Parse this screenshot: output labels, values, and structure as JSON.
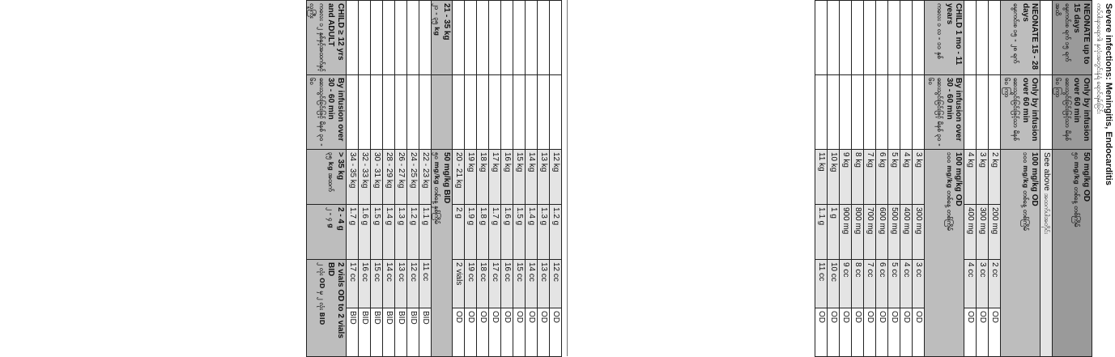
{
  "title": "Severe infections: Meningitis, Endocarditis",
  "subtitle": "ကပ်ပါးနာရောဂါ၊ နှလုံးအတွင်းနံရံ ရောင်ရမ်းခြင်း",
  "right_page": {
    "header": {
      "age": "NEONATE up to 15 days",
      "age_my": "မွေးကင်းစ ရက် ၁၅ ရက်အထိ",
      "route": "Only by infusion over 60 min",
      "route_my": "ဆေးသွင်းခြင်းဖြင့်သာ မိနစ် ၆၀ ကြာ",
      "dose": "50 mg/kg OD",
      "dose_my": "၅၀ mg/kg တစ်နေ့ တစ်ကြိမ်",
      "see_above": "See above",
      "see_above_my": "အထက်ပါအတိုင်း"
    },
    "neonate2": {
      "age": "NEONATE 15 - 28 days",
      "age_my": "မွေးကင်းစ ၁၅ - ၂၈ ရက်",
      "route": "Only by infusion over 60 min",
      "route_my": "ဆေးသွင်းခြင်းဖြင့်သာ မိနစ် ၆၀ ကြာ",
      "dose": "100 mg/kg OD",
      "dose_my": "၁၀၀ mg/kg တစ်နေ့ တစ်ကြိမ်",
      "rows": [
        {
          "kg": "2 kg",
          "mg": "200 mg",
          "cc": "2 cc",
          "freq": "OD"
        },
        {
          "kg": "3 kg",
          "mg": "300 mg",
          "cc": "3 cc",
          "freq": "OD"
        },
        {
          "kg": "4 kg",
          "mg": "400 mg",
          "cc": "4 cc",
          "freq": "OD"
        }
      ]
    },
    "child": {
      "age": "CHILD 1 mo - 11 years",
      "age_my": "ကလေး ၁ လ - ၁၁ နှစ်",
      "route": "By infusion over 30 - 60 min",
      "route_my": "ဆေးသွင်းခြင်းဖြင့် မိနစ် ၃၀ - ၆၀",
      "dose": "100 mg/kg OD",
      "dose_my": "၁၀၀ mg/kg တစ်နေ့ တစ်ကြိမ်",
      "rows": [
        {
          "kg": "3 kg",
          "mg": "300 mg",
          "cc": "3 cc",
          "freq": "OD"
        },
        {
          "kg": "4 kg",
          "mg": "400 mg",
          "cc": "4 cc",
          "freq": "OD"
        },
        {
          "kg": "5 kg",
          "mg": "500 mg",
          "cc": "5 cc",
          "freq": "OD"
        },
        {
          "kg": "6 kg",
          "mg": "600 mg",
          "cc": "6 cc",
          "freq": "OD"
        },
        {
          "kg": "7 kg",
          "mg": "700 mg",
          "cc": "7 cc",
          "freq": "OD"
        },
        {
          "kg": "8 kg",
          "mg": "800 mg",
          "cc": "8 cc",
          "freq": "OD"
        },
        {
          "kg": "9 kg",
          "mg": "900 mg",
          "cc": "9 cc",
          "freq": "OD"
        },
        {
          "kg": "10 kg",
          "mg": "1 g",
          "cc": "10 cc",
          "freq": "OD"
        },
        {
          "kg": "11 kg",
          "mg": "1.1 g",
          "cc": "11 cc",
          "freq": "OD"
        }
      ]
    }
  },
  "left_page": {
    "cont_rows": [
      {
        "kg": "12 kg",
        "g": "1.2 g",
        "cc": "12 cc",
        "freq": "OD"
      },
      {
        "kg": "13 kg",
        "g": "1.3 g",
        "cc": "13 cc",
        "freq": "OD"
      },
      {
        "kg": "14 kg",
        "g": "1.4 g",
        "cc": "14 cc",
        "freq": "OD"
      },
      {
        "kg": "15 kg",
        "g": "1.5 g",
        "cc": "15 cc",
        "freq": "OD"
      },
      {
        "kg": "16 kg",
        "g": "1.6 g",
        "cc": "16 cc",
        "freq": "OD"
      },
      {
        "kg": "17 kg",
        "g": "1.7 g",
        "cc": "17 cc",
        "freq": "OD"
      },
      {
        "kg": "18 kg",
        "g": "1.8 g",
        "cc": "18 cc",
        "freq": "OD"
      },
      {
        "kg": "19 kg",
        "g": "1.9 g",
        "cc": "19 cc",
        "freq": "OD"
      },
      {
        "kg": "20 - 21 kg",
        "g": "2 g",
        "cc": "2 vials",
        "freq": "OD"
      }
    ],
    "band_mid": {
      "dose": "50 mg/kg BID",
      "dose_my": "၅၀ mg/kg တစ်နေ့ နှစ်ကြိမ်",
      "weight": "21 - 35 kg",
      "weight_my": "၂၁ - ၃၅ kg"
    },
    "bid_rows": [
      {
        "kg": "22 - 23 kg",
        "g": "1.1 g",
        "cc": "11 cc",
        "freq": "BID"
      },
      {
        "kg": "24 - 25 kg",
        "g": "1.2 g",
        "cc": "12 cc",
        "freq": "BID"
      },
      {
        "kg": "26 - 27 kg",
        "g": "1.3 g",
        "cc": "13 cc",
        "freq": "BID"
      },
      {
        "kg": "28 - 29 kg",
        "g": "1.4 g",
        "cc": "14 cc",
        "freq": "BID"
      },
      {
        "kg": "30 - 31 kg",
        "g": "1.5 g",
        "cc": "15 cc",
        "freq": "BID"
      },
      {
        "kg": "32 - 33 kg",
        "g": "1.6 g",
        "cc": "16 cc",
        "freq": "BID"
      },
      {
        "kg": "34 - 35 kg",
        "g": "1.7 g",
        "cc": "17 cc",
        "freq": "BID"
      }
    ],
    "adult": {
      "age": "CHILD ≥ 12 yrs and ADULT",
      "age_my": "ကလေး ၁၂ နှစ်နှင့်အထက်နှင့် လူကြီး",
      "route": "By infusion over 30 - 60 min",
      "route_my": "ဆေးသွင်းခြင်းဖြင့် မိနစ် ၃၀ - ၆၀",
      "kg": "> 35 kg",
      "kg_my": "၃၅ kg အထက်",
      "g": "2 - 4 g",
      "g_my": "၂ - ၄ g",
      "freq": "2 vials OD to 2 vials BID",
      "freq_my": "၂ လုံး OD မှ ၂ လုံး BID"
    }
  }
}
